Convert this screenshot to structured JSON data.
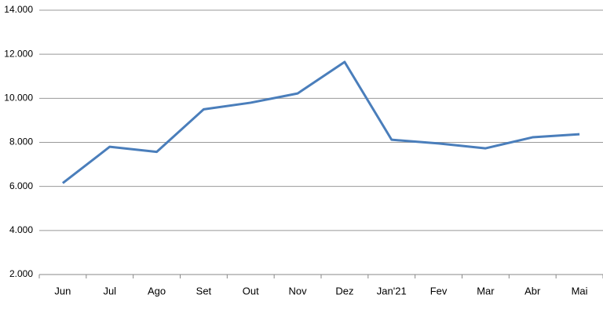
{
  "chart_data": {
    "type": "line",
    "categories": [
      "Jun",
      "Jul",
      "Ago",
      "Set",
      "Out",
      "Nov",
      "Dez",
      "Jan'21",
      "Fev",
      "Mar",
      "Abr",
      "Mai"
    ],
    "series": [
      {
        "color": "#4a7ebb",
        "values": [
          6150,
          7800,
          7570,
          9500,
          9800,
          10220,
          11650,
          8120,
          7950,
          7730,
          8230,
          8370
        ]
      }
    ],
    "ylim": [
      2000,
      14000
    ],
    "yticks": [
      {
        "value": 2000,
        "label": "2.000"
      },
      {
        "value": 4000,
        "label": "4.000"
      },
      {
        "value": 6000,
        "label": "6.000"
      },
      {
        "value": 8000,
        "label": "8.000"
      },
      {
        "value": 10000,
        "label": "10.000"
      },
      {
        "value": 12000,
        "label": "12.000"
      },
      {
        "value": 14000,
        "label": "14.000"
      }
    ],
    "grid": true
  }
}
